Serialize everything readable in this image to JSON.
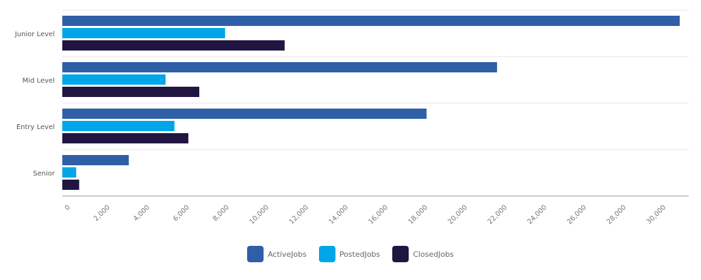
{
  "chart_data": {
    "type": "bar",
    "orientation": "horizontal",
    "categories": [
      "Junior Level",
      "Mid Level",
      "Entry Level",
      "Senior"
    ],
    "series": [
      {
        "name": "ActiveJobs",
        "color": "#2F5FA7",
        "values": [
          31100,
          21900,
          18350,
          3350
        ]
      },
      {
        "name": "PostedJobs",
        "color": "#00A6E8",
        "values": [
          8200,
          5200,
          5650,
          700
        ]
      },
      {
        "name": "ClosedJobs",
        "color": "#211542",
        "values": [
          11200,
          6900,
          6350,
          850
        ]
      }
    ],
    "xticks": [
      "0",
      "2,000",
      "4,000",
      "6,000",
      "8,000",
      "10,000",
      "12,000",
      "14,000",
      "16,000",
      "18,000",
      "20,000",
      "22,000",
      "24,000",
      "26,000",
      "28,000",
      "30,000"
    ],
    "xlim": [
      0,
      31500
    ],
    "grid": true,
    "legend": "bottom"
  }
}
